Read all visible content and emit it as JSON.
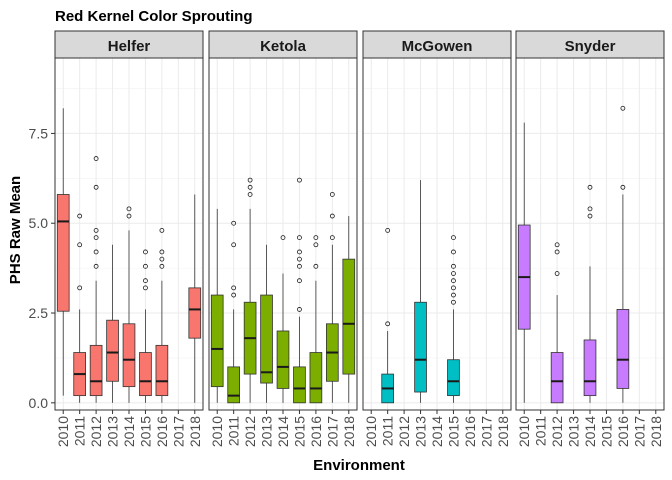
{
  "chart_data": {
    "type": "boxplot",
    "title": "Red Kernel Color Sprouting",
    "xlabel": "Environment",
    "ylabel": "PHS Raw Mean",
    "ylim": [
      -0.2,
      9.6
    ],
    "y_ticks": [
      0.0,
      2.5,
      5.0,
      7.5
    ],
    "y_tick_labels": [
      "0.0",
      "2.5",
      "5.0",
      "7.5"
    ],
    "categories": [
      "2010",
      "2011",
      "2012",
      "2013",
      "2014",
      "2015",
      "2016",
      "2017",
      "2018"
    ],
    "grid": true,
    "legend": "none",
    "panels": [
      {
        "name": "Helfer",
        "color": "#F8766D",
        "boxes": [
          {
            "x": "2010",
            "min": 0.2,
            "q1": 2.55,
            "median": 5.05,
            "q3": 5.8,
            "max": 8.2,
            "outliers": []
          },
          {
            "x": "2011",
            "min": 0.0,
            "q1": 0.2,
            "median": 0.8,
            "q3": 1.4,
            "max": 2.6,
            "outliers": [
              3.2,
              4.4,
              5.2
            ]
          },
          {
            "x": "2012",
            "min": 0.0,
            "q1": 0.2,
            "median": 0.6,
            "q3": 1.6,
            "max": 3.4,
            "outliers": [
              3.8,
              4.2,
              4.6,
              4.8,
              6.0,
              6.8
            ]
          },
          {
            "x": "2013",
            "min": 0.0,
            "q1": 0.6,
            "median": 1.4,
            "q3": 2.3,
            "max": 4.4,
            "outliers": []
          },
          {
            "x": "2014",
            "min": 0.0,
            "q1": 0.45,
            "median": 1.2,
            "q3": 2.2,
            "max": 4.8,
            "outliers": [
              5.2,
              5.4
            ]
          },
          {
            "x": "2015",
            "min": 0.0,
            "q1": 0.2,
            "median": 0.6,
            "q3": 1.4,
            "max": 2.6,
            "outliers": [
              3.2,
              3.4,
              3.8,
              4.2
            ]
          },
          {
            "x": "2016",
            "min": 0.0,
            "q1": 0.2,
            "median": 0.6,
            "q3": 1.6,
            "max": 3.4,
            "outliers": [
              3.8,
              4.0,
              4.2,
              4.8
            ]
          },
          {
            "x": "2018",
            "min": 0.0,
            "q1": 1.8,
            "median": 2.6,
            "q3": 3.2,
            "max": 5.8,
            "outliers": []
          }
        ]
      },
      {
        "name": "Ketola",
        "color": "#7CAE00",
        "boxes": [
          {
            "x": "2010",
            "min": 0.0,
            "q1": 0.45,
            "median": 1.5,
            "q3": 3.0,
            "max": 5.4,
            "outliers": []
          },
          {
            "x": "2011",
            "min": 0.0,
            "q1": 0.0,
            "median": 0.2,
            "q3": 1.0,
            "max": 2.6,
            "outliers": [
              3.0,
              3.2,
              4.4,
              5.0
            ]
          },
          {
            "x": "2012",
            "min": 0.0,
            "q1": 0.8,
            "median": 1.8,
            "q3": 2.8,
            "max": 5.4,
            "outliers": [
              5.8,
              6.0,
              6.2
            ]
          },
          {
            "x": "2013",
            "min": 0.0,
            "q1": 0.55,
            "median": 0.85,
            "q3": 3.0,
            "max": 4.4,
            "outliers": []
          },
          {
            "x": "2014",
            "min": 0.0,
            "q1": 0.4,
            "median": 1.0,
            "q3": 2.0,
            "max": 3.6,
            "outliers": [
              4.6
            ]
          },
          {
            "x": "2015",
            "min": 0.0,
            "q1": 0.0,
            "median": 0.4,
            "q3": 1.0,
            "max": 2.4,
            "outliers": [
              2.6,
              3.4,
              3.8,
              4.0,
              4.2,
              4.6,
              6.2
            ]
          },
          {
            "x": "2016",
            "min": 0.0,
            "q1": 0.0,
            "median": 0.4,
            "q3": 1.4,
            "max": 3.4,
            "outliers": [
              3.8,
              4.4,
              4.6
            ]
          },
          {
            "x": "2017",
            "min": 0.0,
            "q1": 0.6,
            "median": 1.4,
            "q3": 2.2,
            "max": 4.4,
            "outliers": [
              4.6,
              5.2,
              5.8
            ]
          },
          {
            "x": "2018",
            "min": 0.0,
            "q1": 0.8,
            "median": 2.2,
            "q3": 4.0,
            "max": 5.2,
            "outliers": []
          }
        ]
      },
      {
        "name": "McGowen",
        "color": "#00BFC4",
        "boxes": [
          {
            "x": "2011",
            "min": 0.0,
            "q1": 0.0,
            "median": 0.4,
            "q3": 0.8,
            "max": 2.0,
            "outliers": [
              2.2,
              4.8
            ]
          },
          {
            "x": "2013",
            "min": 0.0,
            "q1": 0.3,
            "median": 1.2,
            "q3": 2.8,
            "max": 6.2,
            "outliers": []
          },
          {
            "x": "2015",
            "min": 0.0,
            "q1": 0.2,
            "median": 0.6,
            "q3": 1.2,
            "max": 2.6,
            "outliers": [
              2.8,
              3.0,
              3.2,
              3.4,
              3.6,
              3.8,
              4.2,
              4.6
            ]
          }
        ]
      },
      {
        "name": "Snyder",
        "color": "#C77CFF",
        "boxes": [
          {
            "x": "2010",
            "min": 0.0,
            "q1": 2.05,
            "median": 3.5,
            "q3": 4.95,
            "max": 7.8,
            "outliers": []
          },
          {
            "x": "2012",
            "min": 0.0,
            "q1": 0.0,
            "median": 0.6,
            "q3": 1.4,
            "max": 3.0,
            "outliers": [
              3.6,
              4.2,
              4.4
            ]
          },
          {
            "x": "2014",
            "min": 0.0,
            "q1": 0.2,
            "median": 0.6,
            "q3": 1.75,
            "max": 3.8,
            "outliers": [
              5.2,
              5.4,
              6.0
            ]
          },
          {
            "x": "2016",
            "min": 0.0,
            "q1": 0.4,
            "median": 1.2,
            "q3": 2.6,
            "max": 5.8,
            "outliers": [
              6.0,
              8.2
            ]
          }
        ]
      }
    ]
  }
}
